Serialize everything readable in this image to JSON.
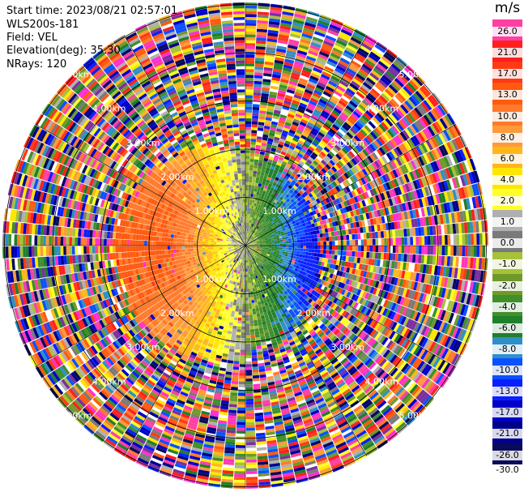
{
  "header": {
    "start_time": "Start time: 2023/08/21 02:57:01",
    "station": "WLS200s-181",
    "field": "Field: VEL",
    "elevation": "Elevation(deg): 35.30",
    "nrays": "NRays: 120"
  },
  "colorbar": {
    "unit": "m/s",
    "levels": [
      {
        "label": "26.0",
        "color": "#ff3fa3"
      },
      {
        "label": "21.0",
        "color": "#ff1f1f"
      },
      {
        "label": "17.0",
        "color": "#ff3a14"
      },
      {
        "label": "13.0",
        "color": "#ff5a10"
      },
      {
        "label": "10.0",
        "color": "#ff7a2a"
      },
      {
        "label": "8.0",
        "color": "#ff9a3a"
      },
      {
        "label": "6.0",
        "color": "#ffb71a"
      },
      {
        "label": "4.0",
        "color": "#ffe600"
      },
      {
        "label": "2.0",
        "color": "#ffff2a"
      },
      {
        "label": "1.0",
        "color": "#b0b0b0"
      },
      {
        "label": "0.0",
        "color": "#7a7a7a"
      },
      {
        "label": "-1.0",
        "color": "#a6c23a"
      },
      {
        "label": "-2.0",
        "color": "#6f9a2a"
      },
      {
        "label": "-4.0",
        "color": "#3f8f2a"
      },
      {
        "label": "-6.0",
        "color": "#1f7f2a"
      },
      {
        "label": "-8.0",
        "color": "#2f8fc8"
      },
      {
        "label": "-10.0",
        "color": "#0a50ff"
      },
      {
        "label": "-13.0",
        "color": "#0a1fff"
      },
      {
        "label": "-17.0",
        "color": "#0000c8"
      },
      {
        "label": "-21.0",
        "color": "#00008a"
      },
      {
        "label": "-26.0",
        "color": "#0a0a5a"
      },
      {
        "label": "-30.0",
        "color": "#ffffff"
      }
    ]
  },
  "range_rings": {
    "labels": [
      "1.00km",
      "2.00km",
      "3.00km",
      "4.00km",
      "5.00km"
    ]
  }
}
